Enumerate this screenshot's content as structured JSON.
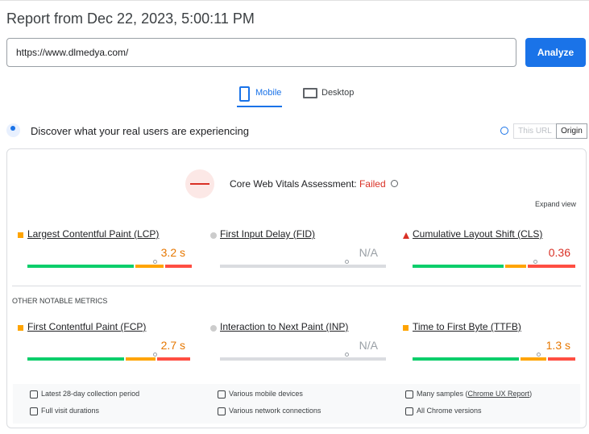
{
  "header": {
    "title": "Report from Dec 22, 2023, 5:00:11 PM"
  },
  "url_input": {
    "value": "https://www.dlmedya.com/"
  },
  "analyze_button": {
    "label": "Analyze"
  },
  "tabs": [
    {
      "label": "Mobile"
    },
    {
      "label": "Desktop"
    }
  ],
  "field_data": {
    "heading": "Discover what your real users are experiencing",
    "toggle": [
      "This URL",
      "Origin"
    ]
  },
  "assessment": {
    "label": "Core Web Vitals Assessment:",
    "status": "Failed",
    "expand": "Expand view"
  },
  "metrics": [
    {
      "name": "Largest Contentful Paint (LCP)",
      "value": "3.2 s"
    },
    {
      "name": "First Input Delay (FID)",
      "value": "N/A"
    },
    {
      "name": "Cumulative Layout Shift (CLS)",
      "value": "0.36"
    }
  ],
  "other_heading": "OTHER NOTABLE METRICS",
  "other_metrics": [
    {
      "name": "First Contentful Paint (FCP)",
      "value": "2.7 s"
    },
    {
      "name": "Interaction to Next Paint (INP)",
      "value": "N/A"
    },
    {
      "name": "Time to First Byte (TTFB)",
      "value": "1.3 s"
    }
  ],
  "footer": [
    {
      "text": "Latest 28-day collection period"
    },
    {
      "text": "Various mobile devices"
    },
    {
      "text": "Many samples (",
      "link": "Chrome UX Report",
      "after": ")"
    },
    {
      "text": "Full visit durations"
    },
    {
      "text": "Various network connections"
    },
    {
      "text": "All Chrome versions"
    }
  ]
}
